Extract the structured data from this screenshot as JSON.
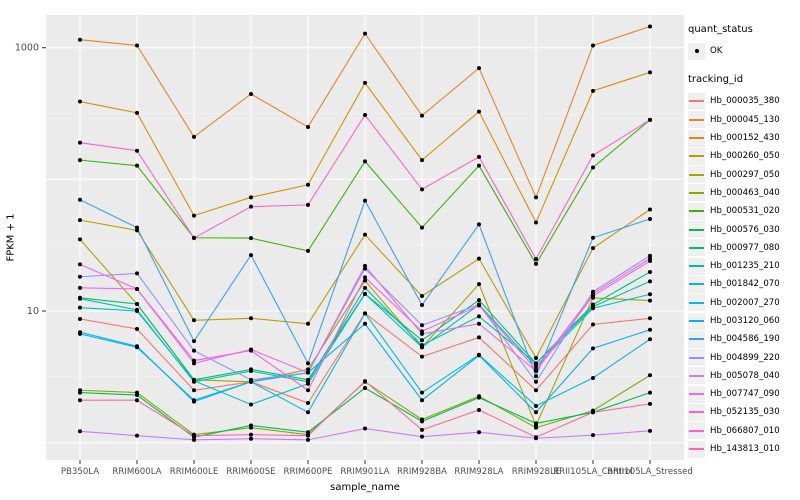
{
  "chart_data": {
    "type": "line",
    "title": "",
    "xlabel": "sample_name",
    "ylabel": "FPKM + 1",
    "y_scale": "log10",
    "ylim": [
      1,
      2000
    ],
    "grid": true,
    "legend_position": "right",
    "panel_bg": "#EBEBEB",
    "point_color": "#000000",
    "y_ticks": [
      {
        "value": 1000,
        "label": "1000"
      },
      {
        "value": 10,
        "label": "10"
      }
    ],
    "grid_major_y": [
      1,
      10,
      100,
      1000
    ],
    "grid_minor_y": [
      3.162,
      31.62,
      316.2
    ],
    "categories": [
      "PB350LA",
      "RRIM600LA",
      "RRIM600LE",
      "RRIM600SE",
      "RRIM600PE",
      "RRIM901LA",
      "RRIM928BA",
      "RRIM928LA",
      "RRIM928LE",
      "RRII105LA_Control",
      "RRII105LA_Stressed"
    ],
    "series": [
      {
        "name": "Hb_000035_380",
        "color": "#F8766D",
        "values": [
          8.7,
          7.3,
          2.5,
          2.9,
          2.0,
          9.6,
          4.5,
          6.3,
          2.5,
          7.9,
          8.8
        ]
      },
      {
        "name": "Hb_000045_130",
        "color": "#E88526",
        "values": [
          1150,
          1040,
          210,
          445,
          250,
          1280,
          305,
          700,
          73,
          1040,
          1450
        ]
      },
      {
        "name": "Hb_000152_430",
        "color": "#D89000",
        "values": [
          390,
          320,
          53,
          73,
          91,
          540,
          140,
          327,
          47,
          470,
          650
        ]
      },
      {
        "name": "Hb_000260_050",
        "color": "#C09B00",
        "values": [
          49,
          41,
          8.5,
          8.8,
          8.0,
          38,
          13,
          25,
          4.4,
          30,
          59
        ]
      },
      {
        "name": "Hb_000297_050",
        "color": "#A3A500",
        "values": [
          35,
          11.3,
          3.0,
          2.9,
          3.6,
          17,
          5.3,
          16,
          1.35,
          12.6,
          12
        ]
      },
      {
        "name": "Hb_000463_040",
        "color": "#7CAE00",
        "values": [
          2.5,
          2.4,
          1.15,
          1.3,
          1.15,
          2.9,
          1.5,
          2.25,
          1.3,
          1.75,
          3.25
        ]
      },
      {
        "name": "Hb_000531_020",
        "color": "#39B600",
        "values": [
          140,
          127,
          36,
          35.8,
          28.6,
          137,
          43,
          127,
          22.8,
          123,
          283
        ]
      },
      {
        "name": "Hb_000576_030",
        "color": "#00BB4E",
        "values": [
          2.4,
          2.3,
          1.1,
          1.35,
          1.2,
          2.6,
          1.45,
          2.2,
          1.4,
          1.7,
          2.4
        ]
      },
      {
        "name": "Hb_000977_080",
        "color": "#00BF7D",
        "values": [
          12.6,
          11.3,
          3.0,
          3.6,
          3.0,
          13.5,
          6.0,
          12.1,
          4.0,
          11.2,
          19.8
        ]
      },
      {
        "name": "Hb_001235_210",
        "color": "#00C1A3",
        "values": [
          12.4,
          10.2,
          2.9,
          3.5,
          2.9,
          15,
          5.5,
          9.1,
          4.0,
          10.8,
          16.8
        ]
      },
      {
        "name": "Hb_001842_070",
        "color": "#00BFC4",
        "values": [
          10.6,
          10.0,
          2.95,
          1.95,
          2.8,
          13.5,
          5.3,
          11.2,
          3.8,
          10.5,
          13.4
        ]
      },
      {
        "name": "Hb_002007_270",
        "color": "#00BAE0",
        "values": [
          6.9,
          5.4,
          2.05,
          2.9,
          1.7,
          9.6,
          2.4,
          4.65,
          1.9,
          3.1,
          6.1
        ]
      },
      {
        "name": "Hb_003120_060",
        "color": "#00B0F6",
        "values": [
          6.7,
          5.3,
          2.1,
          2.9,
          3.4,
          8.0,
          2.1,
          4.6,
          1.7,
          5.2,
          7.2
        ]
      },
      {
        "name": "Hb_004586_190",
        "color": "#35A2FF",
        "values": [
          70,
          43,
          5.9,
          26.6,
          4.0,
          69,
          11.1,
          45.5,
          3.2,
          36,
          50
        ]
      },
      {
        "name": "Hb_004899_220",
        "color": "#9590FF",
        "values": [
          18.2,
          19.3,
          5.0,
          3.0,
          3.4,
          21,
          7.8,
          11.2,
          2.9,
          14,
          26.3
        ]
      },
      {
        "name": "Hb_005078_040",
        "color": "#C77CFF",
        "values": [
          1.22,
          1.13,
          1.05,
          1.07,
          1.05,
          1.28,
          1.11,
          1.2,
          1.08,
          1.14,
          1.23
        ]
      },
      {
        "name": "Hb_007747_090",
        "color": "#E76BF3",
        "values": [
          22.6,
          14.7,
          4.0,
          5.1,
          3.4,
          22,
          6.7,
          8.0,
          3.5,
          13,
          24
        ]
      },
      {
        "name": "Hb_052135_030",
        "color": "#FA62DB",
        "values": [
          15,
          14.7,
          4.2,
          5.0,
          2.5,
          18,
          7.0,
          11.0,
          3.6,
          13.5,
          25
        ]
      },
      {
        "name": "Hb_066807_010",
        "color": "#FF61CC",
        "values": [
          190,
          165,
          35.8,
          62,
          64,
          308,
          84,
          148,
          24.8,
          152,
          283
        ]
      },
      {
        "name": "Hb_143813_010",
        "color": "#FF67A4",
        "values": [
          2.1,
          2.1,
          1.13,
          1.15,
          1.13,
          2.93,
          1.25,
          1.77,
          1.1,
          1.7,
          1.97
        ]
      }
    ]
  },
  "legend": {
    "quant_status_title": "quant_status",
    "quant_status_items": [
      {
        "label": "OK",
        "shape": "point"
      }
    ],
    "tracking_title": "tracking_id"
  }
}
